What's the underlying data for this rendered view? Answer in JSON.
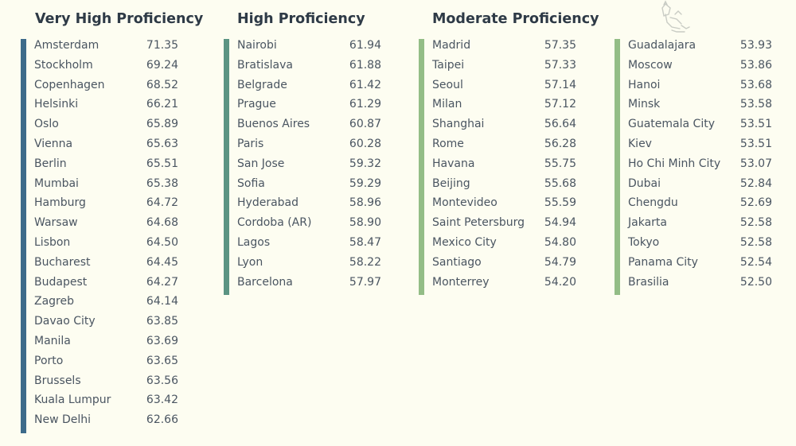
{
  "very_high": {
    "title": "Very High Proficiency",
    "color": "#3d6b8a",
    "rows": [
      {
        "city": "Amsterdam",
        "score": "71.35"
      },
      {
        "city": "Stockholm",
        "score": "69.24"
      },
      {
        "city": "Copenhagen",
        "score": "68.52"
      },
      {
        "city": "Helsinki",
        "score": "66.21"
      },
      {
        "city": "Oslo",
        "score": "65.89"
      },
      {
        "city": "Vienna",
        "score": "65.63"
      },
      {
        "city": "Berlin",
        "score": "65.51"
      },
      {
        "city": "Mumbai",
        "score": "65.38"
      },
      {
        "city": "Hamburg",
        "score": "64.72"
      },
      {
        "city": "Warsaw",
        "score": "64.68"
      },
      {
        "city": "Lisbon",
        "score": "64.50"
      },
      {
        "city": "Bucharest",
        "score": "64.45"
      },
      {
        "city": "Budapest",
        "score": "64.27"
      },
      {
        "city": "Zagreb",
        "score": "64.14"
      },
      {
        "city": "Davao City",
        "score": "63.85"
      },
      {
        "city": "Manila",
        "score": "63.69"
      },
      {
        "city": "Porto",
        "score": "63.65"
      },
      {
        "city": "Brussels",
        "score": "63.56"
      },
      {
        "city": "Kuala Lumpur",
        "score": "63.42"
      },
      {
        "city": "New Delhi",
        "score": "62.66"
      }
    ]
  },
  "high": {
    "title": "High Proficiency",
    "color": "#5b9483",
    "rows": [
      {
        "city": "Nairobi",
        "score": "61.94"
      },
      {
        "city": "Bratislava",
        "score": "61.88"
      },
      {
        "city": "Belgrade",
        "score": "61.42"
      },
      {
        "city": "Prague",
        "score": "61.29"
      },
      {
        "city": "Buenos Aires",
        "score": "60.87"
      },
      {
        "city": "Paris",
        "score": "60.28"
      },
      {
        "city": "San Jose",
        "score": "59.32"
      },
      {
        "city": "Sofia",
        "score": "59.29"
      },
      {
        "city": "Hyderabad",
        "score": "58.96"
      },
      {
        "city": "Cordoba (AR)",
        "score": "58.90"
      },
      {
        "city": "Lagos",
        "score": "58.47"
      },
      {
        "city": "Lyon",
        "score": "58.22"
      },
      {
        "city": "Barcelona",
        "score": "57.97"
      }
    ]
  },
  "moderate": {
    "title": "Moderate Proficiency",
    "color": "#93bd86",
    "rows_left": [
      {
        "city": "Madrid",
        "score": "57.35"
      },
      {
        "city": "Taipei",
        "score": "57.33"
      },
      {
        "city": "Seoul",
        "score": "57.14"
      },
      {
        "city": "Milan",
        "score": "57.12"
      },
      {
        "city": "Shanghai",
        "score": "56.64"
      },
      {
        "city": "Rome",
        "score": "56.28"
      },
      {
        "city": "Havana",
        "score": "55.75"
      },
      {
        "city": "Beijing",
        "score": "55.68"
      },
      {
        "city": "Montevideo",
        "score": "55.59"
      },
      {
        "city": "Saint Petersburg",
        "score": "54.94"
      },
      {
        "city": "Mexico City",
        "score": "54.80"
      },
      {
        "city": "Santiago",
        "score": "54.79"
      },
      {
        "city": "Monterrey",
        "score": "54.20"
      }
    ],
    "rows_right": [
      {
        "city": "Guadalajara",
        "score": "53.93"
      },
      {
        "city": "Moscow",
        "score": "53.86"
      },
      {
        "city": "Hanoi",
        "score": "53.68"
      },
      {
        "city": "Minsk",
        "score": "53.58"
      },
      {
        "city": "Guatemala City",
        "score": "53.51"
      },
      {
        "city": "Kiev",
        "score": "53.51"
      },
      {
        "city": "Ho Chi Minh City",
        "score": "53.07"
      },
      {
        "city": "Dubai",
        "score": "52.84"
      },
      {
        "city": "Chengdu",
        "score": "52.69"
      },
      {
        "city": "Jakarta",
        "score": "52.58"
      },
      {
        "city": "Tokyo",
        "score": "52.58"
      },
      {
        "city": "Panama City",
        "score": "52.54"
      },
      {
        "city": "Brasilia",
        "score": "52.50"
      }
    ]
  },
  "decor_icon": "sketch-illustration-icon"
}
